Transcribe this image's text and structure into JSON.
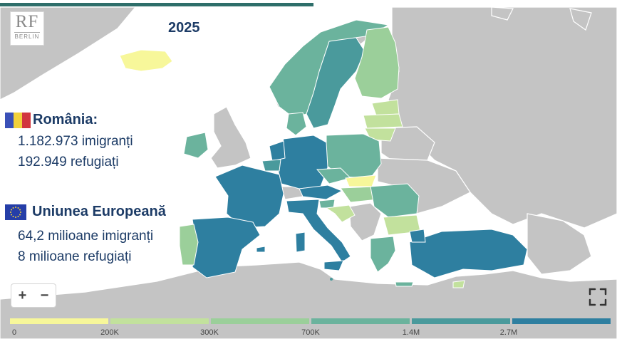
{
  "logo": {
    "brand": "RF",
    "city": "BERLIN"
  },
  "year": "2025",
  "romania": {
    "title": "România:",
    "immigrants": "1.182.973 imigranți",
    "refugees": "192.949 refugiați",
    "flag_colors": [
      "#3a50b8",
      "#f2d13b",
      "#d1363e"
    ]
  },
  "eu": {
    "title": "Uniunea Europeană",
    "immigrants": "64,2 milioane imigranți",
    "refugees": "8 milioane refugiați",
    "flag_color": "#253ea8"
  },
  "controls": {
    "zoom_in": "+",
    "zoom_out": "−",
    "fullscreen_icon": "expand-icon"
  },
  "legend": {
    "labels": [
      "0",
      "200K",
      "300K",
      "700K",
      "1.4M",
      "2.7M"
    ],
    "colors": [
      "#f7f79a",
      "#c2e19d",
      "#9bcf9a",
      "#6bb39d",
      "#4a9a9c",
      "#2e7fa0"
    ]
  },
  "colors": {
    "sea": "#ffffff",
    "land_non_eu": "#c4c4c4",
    "border": "#ffffff",
    "title_text": "#1c3b66"
  }
}
